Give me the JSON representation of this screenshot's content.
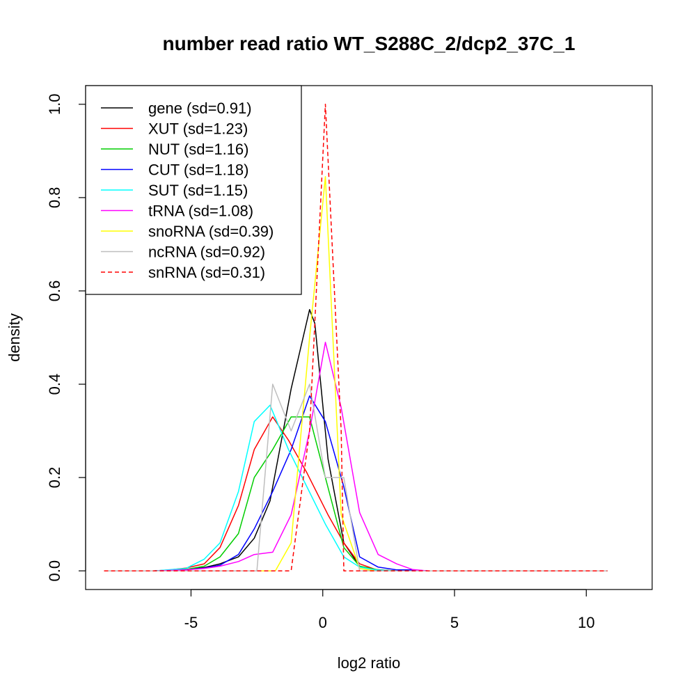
{
  "chart_data": {
    "type": "line",
    "title": "number read ratio WT_S288C_2/dcp2_37C_1",
    "xlabel": "log2 ratio",
    "ylabel": "density",
    "xlim": [
      -9,
      12.5
    ],
    "ylim": [
      -0.04,
      1.04
    ],
    "xticks": [
      -5,
      0,
      5,
      10
    ],
    "xtick_labels": [
      "-5",
      "0",
      "5",
      "10"
    ],
    "yticks": [
      0.0,
      0.2,
      0.4,
      0.6,
      0.8,
      1.0
    ],
    "ytick_labels": [
      "0.0",
      "0.2",
      "0.4",
      "0.6",
      "0.8",
      "1.0"
    ],
    "grid": false,
    "legend_position": "top-left",
    "series": [
      {
        "name": "gene (sd=0.91)",
        "color": "#000000",
        "dashed": false,
        "points": [
          [
            -8.3,
            0
          ],
          [
            -6.4,
            0
          ],
          [
            -5.2,
            0.003
          ],
          [
            -4.5,
            0.007
          ],
          [
            -3.9,
            0.015
          ],
          [
            -3.2,
            0.03
          ],
          [
            -2.6,
            0.07
          ],
          [
            -2.0,
            0.15
          ],
          [
            -1.2,
            0.39
          ],
          [
            -0.5,
            0.56
          ],
          [
            -0.3,
            0.53
          ],
          [
            0.2,
            0.24
          ],
          [
            0.8,
            0.06
          ],
          [
            1.4,
            0.01
          ],
          [
            2.0,
            0.002
          ],
          [
            2.8,
            0
          ],
          [
            10.8,
            0
          ]
        ]
      },
      {
        "name": "XUT (sd=1.23)",
        "color": "#ff0000",
        "dashed": false,
        "points": [
          [
            -8.3,
            0
          ],
          [
            -6.4,
            0
          ],
          [
            -5.8,
            0.002
          ],
          [
            -5.2,
            0.006
          ],
          [
            -4.5,
            0.015
          ],
          [
            -3.9,
            0.05
          ],
          [
            -3.2,
            0.14
          ],
          [
            -2.6,
            0.26
          ],
          [
            -1.9,
            0.33
          ],
          [
            -1.3,
            0.28
          ],
          [
            -0.6,
            0.21
          ],
          [
            0.2,
            0.12
          ],
          [
            0.8,
            0.06
          ],
          [
            1.4,
            0.015
          ],
          [
            2.0,
            0.003
          ],
          [
            2.8,
            0
          ],
          [
            10.8,
            0
          ]
        ]
      },
      {
        "name": "NUT (sd=1.16)",
        "color": "#00cd00",
        "dashed": false,
        "points": [
          [
            -8.3,
            0
          ],
          [
            -6.4,
            0
          ],
          [
            -5.2,
            0.003
          ],
          [
            -4.5,
            0.01
          ],
          [
            -3.9,
            0.03
          ],
          [
            -3.2,
            0.08
          ],
          [
            -2.6,
            0.2
          ],
          [
            -1.9,
            0.26
          ],
          [
            -1.2,
            0.33
          ],
          [
            -0.5,
            0.33
          ],
          [
            0.1,
            0.2
          ],
          [
            0.8,
            0.05
          ],
          [
            1.4,
            0.01
          ],
          [
            2.1,
            0.002
          ],
          [
            2.8,
            0
          ],
          [
            10.8,
            0
          ]
        ]
      },
      {
        "name": "CUT (sd=1.18)",
        "color": "#0000ff",
        "dashed": false,
        "points": [
          [
            -8.3,
            0
          ],
          [
            -6.4,
            0
          ],
          [
            -5.2,
            0.002
          ],
          [
            -4.5,
            0.006
          ],
          [
            -3.9,
            0.012
          ],
          [
            -3.2,
            0.035
          ],
          [
            -2.6,
            0.09
          ],
          [
            -1.9,
            0.17
          ],
          [
            -1.2,
            0.26
          ],
          [
            -0.5,
            0.375
          ],
          [
            0.1,
            0.32
          ],
          [
            0.8,
            0.18
          ],
          [
            1.4,
            0.03
          ],
          [
            2.1,
            0.008
          ],
          [
            2.8,
            0.002
          ],
          [
            3.4,
            0.002
          ],
          [
            4.0,
            0
          ],
          [
            10.8,
            0
          ]
        ]
      },
      {
        "name": "SUT (sd=1.15)",
        "color": "#00ffff",
        "dashed": false,
        "points": [
          [
            -8.3,
            0
          ],
          [
            -6.4,
            0
          ],
          [
            -5.2,
            0.005
          ],
          [
            -4.5,
            0.025
          ],
          [
            -3.9,
            0.06
          ],
          [
            -3.2,
            0.17
          ],
          [
            -2.6,
            0.32
          ],
          [
            -2.0,
            0.355
          ],
          [
            -1.3,
            0.26
          ],
          [
            -0.6,
            0.18
          ],
          [
            0.1,
            0.1
          ],
          [
            0.8,
            0.03
          ],
          [
            1.4,
            0.008
          ],
          [
            2.0,
            0.002
          ],
          [
            2.8,
            0
          ],
          [
            10.8,
            0
          ]
        ]
      },
      {
        "name": "tRNA (sd=1.08)",
        "color": "#ff00ff",
        "dashed": false,
        "points": [
          [
            -8.3,
            0
          ],
          [
            -6.4,
            0
          ],
          [
            -5.2,
            0.002
          ],
          [
            -4.5,
            0.005
          ],
          [
            -3.9,
            0.01
          ],
          [
            -3.2,
            0.02
          ],
          [
            -2.6,
            0.035
          ],
          [
            -1.9,
            0.04
          ],
          [
            -1.2,
            0.12
          ],
          [
            -0.5,
            0.3
          ],
          [
            0.1,
            0.49
          ],
          [
            0.7,
            0.35
          ],
          [
            1.4,
            0.125
          ],
          [
            2.1,
            0.035
          ],
          [
            2.8,
            0.015
          ],
          [
            3.4,
            0.003
          ],
          [
            4.0,
            0
          ],
          [
            10.8,
            0
          ]
        ]
      },
      {
        "name": "snoRNA (sd=0.39)",
        "color": "#ffff00",
        "dashed": false,
        "points": [
          [
            -8.3,
            0
          ],
          [
            -1.8,
            0
          ],
          [
            -1.2,
            0.06
          ],
          [
            -0.5,
            0.5
          ],
          [
            0.1,
            0.845
          ],
          [
            0.7,
            0.12
          ],
          [
            1.4,
            0.005
          ],
          [
            2.0,
            0
          ],
          [
            10.8,
            0
          ]
        ]
      },
      {
        "name": "ncRNA (sd=0.92)",
        "color": "#bebebe",
        "dashed": false,
        "points": [
          [
            -8.3,
            0
          ],
          [
            -2.5,
            0
          ],
          [
            -1.9,
            0.4
          ],
          [
            -1.2,
            0.3
          ],
          [
            -0.5,
            0.4
          ],
          [
            0.1,
            0.2
          ],
          [
            0.8,
            0.2
          ],
          [
            1.4,
            0
          ],
          [
            10.8,
            0
          ]
        ]
      },
      {
        "name": "snRNA (sd=0.31)",
        "color": "#ff0000",
        "dashed": true,
        "points": [
          [
            -8.3,
            0
          ],
          [
            -1.2,
            0
          ],
          [
            -0.5,
            0.3
          ],
          [
            0.1,
            1.0
          ],
          [
            0.7,
            0.3
          ],
          [
            0.8,
            0
          ],
          [
            10.8,
            0
          ]
        ]
      }
    ]
  }
}
